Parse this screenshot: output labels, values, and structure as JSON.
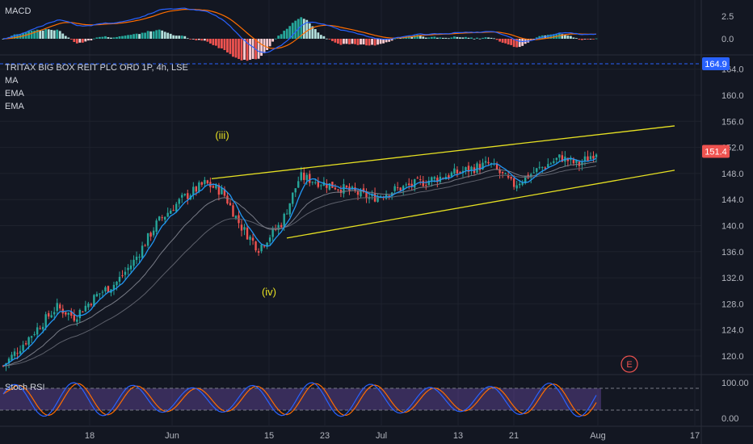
{
  "colors": {
    "background": "#131722",
    "grid": "#1e222d",
    "text": "#b2b5be",
    "up": "#26a69a",
    "down": "#ef5350",
    "ma_blue": "#2196f3",
    "ema_grey": "#787b86",
    "channel": "#e6e022",
    "annotation": "#e6e022",
    "stoch_k": "#2962ff",
    "stoch_d": "#ff6d00",
    "stoch_band": "#7e57c2",
    "price_tag": "#ef5350",
    "alert_tag": "#2962ff",
    "macd_line": "#2962ff",
    "signal_line": "#ff6d00"
  },
  "header": {
    "symbol": "TRITAX BIG BOX REIT PLC ORD 1P, 4h, LSE",
    "indicators": [
      "MA",
      "EMA",
      "EMA"
    ]
  },
  "macd": {
    "label": "MACD",
    "ticks": [
      "2.5",
      "0.0"
    ]
  },
  "stoch": {
    "label": "Stoch RSI",
    "ticks": [
      "100.00",
      "0.00"
    ]
  },
  "price_axis": {
    "ticks": [
      "164.0",
      "160.0",
      "156.0",
      "152.0",
      "148.0",
      "144.0",
      "140.0",
      "136.0",
      "132.0",
      "128.0",
      "124.0",
      "120.0"
    ],
    "last_price": "151.4",
    "alert_price": "164.9"
  },
  "time_axis": {
    "ticks": [
      "18",
      "Jun",
      "15",
      "23",
      "Jul",
      "13",
      "21",
      "Aug",
      "17"
    ]
  },
  "annotations": {
    "wave_iii": "(iii)",
    "wave_iv": "(iv)",
    "earnings_marker": "E"
  },
  "chart_data": {
    "type": "candlestick",
    "title": "TRITAX BIG BOX REIT PLC ORD 1P, 4h, LSE",
    "ylim": [
      118,
      166
    ],
    "price_path": [
      [
        0,
        118.5
      ],
      [
        0.05,
        123.5
      ],
      [
        0.09,
        127.5
      ],
      [
        0.12,
        126.0
      ],
      [
        0.16,
        129.5
      ],
      [
        0.19,
        131.2
      ],
      [
        0.22,
        134.5
      ],
      [
        0.26,
        140.5
      ],
      [
        0.3,
        144.0
      ],
      [
        0.34,
        146.5
      ],
      [
        0.37,
        145.2
      ],
      [
        0.4,
        140.0
      ],
      [
        0.43,
        136.5
      ],
      [
        0.47,
        140.5
      ],
      [
        0.5,
        147.5
      ],
      [
        0.54,
        146.5
      ],
      [
        0.58,
        145.5
      ],
      [
        0.62,
        144.2
      ],
      [
        0.66,
        145.5
      ],
      [
        0.7,
        146.5
      ],
      [
        0.74,
        147.5
      ],
      [
        0.78,
        148.5
      ],
      [
        0.82,
        149.5
      ],
      [
        0.86,
        146.2
      ],
      [
        0.9,
        148.5
      ],
      [
        0.94,
        150.5
      ],
      [
        0.97,
        149.3
      ],
      [
        1.0,
        151.4
      ]
    ],
    "channel": {
      "upper": [
        147.2,
        155.3
      ],
      "lower": [
        138.1,
        148.5
      ]
    },
    "last_price": 151.4
  }
}
